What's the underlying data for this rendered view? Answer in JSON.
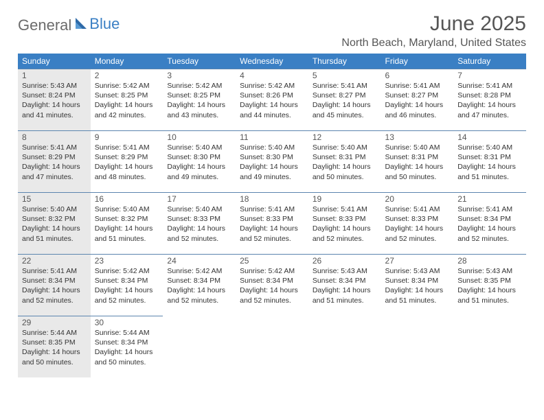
{
  "brand": {
    "part1": "General",
    "part2": "Blue"
  },
  "title": "June 2025",
  "location": "North Beach, Maryland, United States",
  "colors": {
    "header_bg": "#3a7fc4",
    "header_text": "#ffffff",
    "cell_rule": "#5a84ae",
    "gray_cell": "#e9e9e9",
    "body_text": "#333333",
    "muted_text": "#555555"
  },
  "day_headers": [
    "Sunday",
    "Monday",
    "Tuesday",
    "Wednesday",
    "Thursday",
    "Friday",
    "Saturday"
  ],
  "weeks": [
    [
      {
        "n": "1",
        "gray": true,
        "sr": "Sunrise: 5:43 AM",
        "ss": "Sunset: 8:24 PM",
        "d1": "Daylight: 14 hours",
        "d2": "and 41 minutes."
      },
      {
        "n": "2",
        "gray": false,
        "sr": "Sunrise: 5:42 AM",
        "ss": "Sunset: 8:25 PM",
        "d1": "Daylight: 14 hours",
        "d2": "and 42 minutes."
      },
      {
        "n": "3",
        "gray": false,
        "sr": "Sunrise: 5:42 AM",
        "ss": "Sunset: 8:25 PM",
        "d1": "Daylight: 14 hours",
        "d2": "and 43 minutes."
      },
      {
        "n": "4",
        "gray": false,
        "sr": "Sunrise: 5:42 AM",
        "ss": "Sunset: 8:26 PM",
        "d1": "Daylight: 14 hours",
        "d2": "and 44 minutes."
      },
      {
        "n": "5",
        "gray": false,
        "sr": "Sunrise: 5:41 AM",
        "ss": "Sunset: 8:27 PM",
        "d1": "Daylight: 14 hours",
        "d2": "and 45 minutes."
      },
      {
        "n": "6",
        "gray": false,
        "sr": "Sunrise: 5:41 AM",
        "ss": "Sunset: 8:27 PM",
        "d1": "Daylight: 14 hours",
        "d2": "and 46 minutes."
      },
      {
        "n": "7",
        "gray": false,
        "sr": "Sunrise: 5:41 AM",
        "ss": "Sunset: 8:28 PM",
        "d1": "Daylight: 14 hours",
        "d2": "and 47 minutes."
      }
    ],
    [
      {
        "n": "8",
        "gray": true,
        "sr": "Sunrise: 5:41 AM",
        "ss": "Sunset: 8:29 PM",
        "d1": "Daylight: 14 hours",
        "d2": "and 47 minutes."
      },
      {
        "n": "9",
        "gray": false,
        "sr": "Sunrise: 5:41 AM",
        "ss": "Sunset: 8:29 PM",
        "d1": "Daylight: 14 hours",
        "d2": "and 48 minutes."
      },
      {
        "n": "10",
        "gray": false,
        "sr": "Sunrise: 5:40 AM",
        "ss": "Sunset: 8:30 PM",
        "d1": "Daylight: 14 hours",
        "d2": "and 49 minutes."
      },
      {
        "n": "11",
        "gray": false,
        "sr": "Sunrise: 5:40 AM",
        "ss": "Sunset: 8:30 PM",
        "d1": "Daylight: 14 hours",
        "d2": "and 49 minutes."
      },
      {
        "n": "12",
        "gray": false,
        "sr": "Sunrise: 5:40 AM",
        "ss": "Sunset: 8:31 PM",
        "d1": "Daylight: 14 hours",
        "d2": "and 50 minutes."
      },
      {
        "n": "13",
        "gray": false,
        "sr": "Sunrise: 5:40 AM",
        "ss": "Sunset: 8:31 PM",
        "d1": "Daylight: 14 hours",
        "d2": "and 50 minutes."
      },
      {
        "n": "14",
        "gray": false,
        "sr": "Sunrise: 5:40 AM",
        "ss": "Sunset: 8:31 PM",
        "d1": "Daylight: 14 hours",
        "d2": "and 51 minutes."
      }
    ],
    [
      {
        "n": "15",
        "gray": true,
        "sr": "Sunrise: 5:40 AM",
        "ss": "Sunset: 8:32 PM",
        "d1": "Daylight: 14 hours",
        "d2": "and 51 minutes."
      },
      {
        "n": "16",
        "gray": false,
        "sr": "Sunrise: 5:40 AM",
        "ss": "Sunset: 8:32 PM",
        "d1": "Daylight: 14 hours",
        "d2": "and 51 minutes."
      },
      {
        "n": "17",
        "gray": false,
        "sr": "Sunrise: 5:40 AM",
        "ss": "Sunset: 8:33 PM",
        "d1": "Daylight: 14 hours",
        "d2": "and 52 minutes."
      },
      {
        "n": "18",
        "gray": false,
        "sr": "Sunrise: 5:41 AM",
        "ss": "Sunset: 8:33 PM",
        "d1": "Daylight: 14 hours",
        "d2": "and 52 minutes."
      },
      {
        "n": "19",
        "gray": false,
        "sr": "Sunrise: 5:41 AM",
        "ss": "Sunset: 8:33 PM",
        "d1": "Daylight: 14 hours",
        "d2": "and 52 minutes."
      },
      {
        "n": "20",
        "gray": false,
        "sr": "Sunrise: 5:41 AM",
        "ss": "Sunset: 8:33 PM",
        "d1": "Daylight: 14 hours",
        "d2": "and 52 minutes."
      },
      {
        "n": "21",
        "gray": false,
        "sr": "Sunrise: 5:41 AM",
        "ss": "Sunset: 8:34 PM",
        "d1": "Daylight: 14 hours",
        "d2": "and 52 minutes."
      }
    ],
    [
      {
        "n": "22",
        "gray": true,
        "sr": "Sunrise: 5:41 AM",
        "ss": "Sunset: 8:34 PM",
        "d1": "Daylight: 14 hours",
        "d2": "and 52 minutes."
      },
      {
        "n": "23",
        "gray": false,
        "sr": "Sunrise: 5:42 AM",
        "ss": "Sunset: 8:34 PM",
        "d1": "Daylight: 14 hours",
        "d2": "and 52 minutes."
      },
      {
        "n": "24",
        "gray": false,
        "sr": "Sunrise: 5:42 AM",
        "ss": "Sunset: 8:34 PM",
        "d1": "Daylight: 14 hours",
        "d2": "and 52 minutes."
      },
      {
        "n": "25",
        "gray": false,
        "sr": "Sunrise: 5:42 AM",
        "ss": "Sunset: 8:34 PM",
        "d1": "Daylight: 14 hours",
        "d2": "and 52 minutes."
      },
      {
        "n": "26",
        "gray": false,
        "sr": "Sunrise: 5:43 AM",
        "ss": "Sunset: 8:34 PM",
        "d1": "Daylight: 14 hours",
        "d2": "and 51 minutes."
      },
      {
        "n": "27",
        "gray": false,
        "sr": "Sunrise: 5:43 AM",
        "ss": "Sunset: 8:34 PM",
        "d1": "Daylight: 14 hours",
        "d2": "and 51 minutes."
      },
      {
        "n": "28",
        "gray": false,
        "sr": "Sunrise: 5:43 AM",
        "ss": "Sunset: 8:35 PM",
        "d1": "Daylight: 14 hours",
        "d2": "and 51 minutes."
      }
    ],
    [
      {
        "n": "29",
        "gray": true,
        "sr": "Sunrise: 5:44 AM",
        "ss": "Sunset: 8:35 PM",
        "d1": "Daylight: 14 hours",
        "d2": "and 50 minutes."
      },
      {
        "n": "30",
        "gray": false,
        "sr": "Sunrise: 5:44 AM",
        "ss": "Sunset: 8:34 PM",
        "d1": "Daylight: 14 hours",
        "d2": "and 50 minutes."
      },
      {
        "empty": true
      },
      {
        "empty": true
      },
      {
        "empty": true
      },
      {
        "empty": true
      },
      {
        "empty": true
      }
    ]
  ]
}
